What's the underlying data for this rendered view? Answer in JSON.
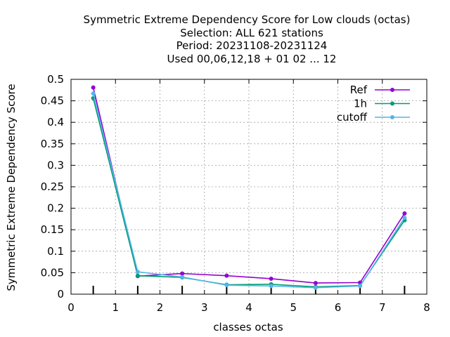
{
  "chart_data": {
    "type": "line",
    "title_lines": [
      "Symmetric Extreme Dependency Score  for Low clouds (octas)",
      "Selection: ALL    621 stations",
      "Period: 20231108-20231124",
      "Used  00,06,12,18 + 01 02 ... 12"
    ],
    "xlabel": "classes octas",
    "ylabel": "Symmetric Extreme Dependency Score",
    "xlim": [
      0,
      8
    ],
    "ylim": [
      0,
      0.5
    ],
    "x_ticks": [
      "0",
      "1",
      "2",
      "3",
      "4",
      "5",
      "6",
      "7",
      "8"
    ],
    "y_ticks": [
      "0",
      "0.05",
      "0.1",
      "0.15",
      "0.2",
      "0.25",
      "0.3",
      "0.35",
      "0.4",
      "0.45",
      "0.5"
    ],
    "grid": true,
    "legend_position": "top-right",
    "x": [
      0.5,
      1.5,
      2.5,
      3.5,
      4.5,
      5.5,
      6.5,
      7.5
    ],
    "series": [
      {
        "name": "Ref",
        "color": "#9400d3",
        "values": [
          0.481,
          0.042,
          0.048,
          0.043,
          0.036,
          0.026,
          0.027,
          0.188
        ]
      },
      {
        "name": "1h",
        "color": "#009e73",
        "values": [
          0.456,
          0.043,
          0.039,
          0.022,
          0.023,
          0.017,
          0.02,
          0.172
        ]
      },
      {
        "name": "cutoff",
        "color": "#56b4e9",
        "values": [
          0.467,
          0.052,
          0.04,
          0.021,
          0.019,
          0.015,
          0.019,
          0.178
        ]
      }
    ]
  }
}
